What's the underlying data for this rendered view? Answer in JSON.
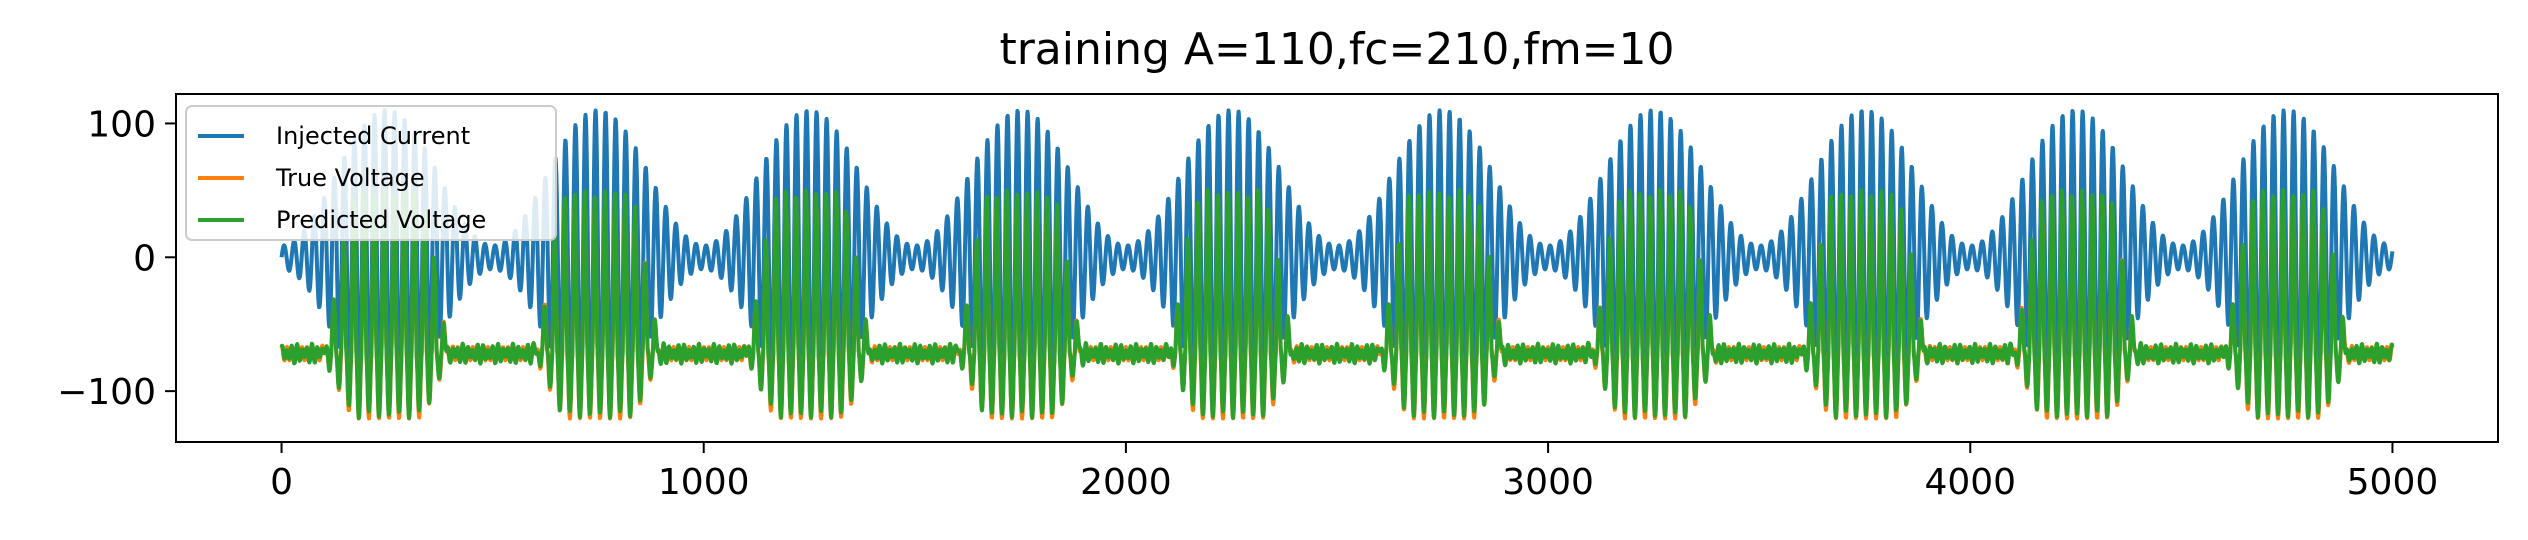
{
  "chart_data": {
    "type": "line",
    "title": "training A=110,fc=210,fm=10",
    "xlabel": "",
    "ylabel": "",
    "xlim": [
      -250,
      5250
    ],
    "ylim": [
      -138,
      122
    ],
    "xticks": [
      0,
      1000,
      2000,
      3000,
      4000,
      5000
    ],
    "xtick_labels": [
      "0",
      "1000",
      "2000",
      "3000",
      "4000",
      "5000"
    ],
    "yticks": [
      -100,
      0,
      100
    ],
    "ytick_labels": [
      "−100",
      "0",
      "100"
    ],
    "grid": false,
    "legend_position": "top-left",
    "x_range": [
      0,
      5000
    ],
    "series": [
      {
        "name": "Injected Current",
        "color": "#1f77b4",
        "amplitude": 110,
        "carrier_period": 23.8,
        "envelope_period": 500
      },
      {
        "name": "True Voltage",
        "color": "#ff7f0e",
        "baseline": -72,
        "peak_max": 45,
        "trough_min": -123
      },
      {
        "name": "Predicted Voltage",
        "color": "#2ca02c",
        "baseline": -72,
        "peak_max": 48,
        "trough_min": -120
      }
    ]
  }
}
